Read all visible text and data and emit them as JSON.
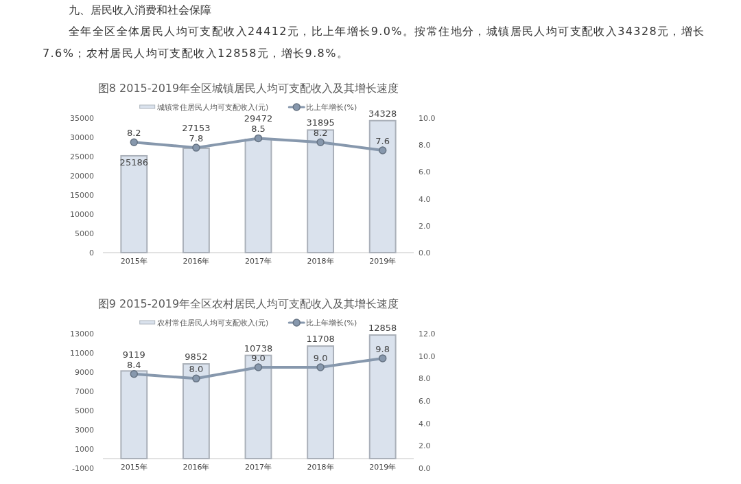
{
  "chart_data": [
    {
      "type": "other",
      "title": "九、居民收入消费和社会保障",
      "annotations": [
        "全年全区全体居民人均可支配收入24412元，比上年增长9.0%。按常住地分，城镇居民人均可支配收入34328元，增长7.6%；农村居民人均可支配收入12858元，增长9.8%。"
      ]
    },
    {
      "type": "bar",
      "title": "图8 2015-2019年全区城镇居民人均可支配收入及其增长速度",
      "categories": [
        "2015年",
        "2016年",
        "2017年",
        "2018年",
        "2019年"
      ],
      "series": [
        {
          "name": "城镇常住居民人均可支配收入(元)",
          "type": "bar",
          "color": "#dae2ed",
          "values": [
            25186,
            27153,
            29472,
            31895,
            34328
          ],
          "value_labels": [
            "25186",
            "27153",
            "29472",
            "31895",
            "34328"
          ]
        },
        {
          "name": "比上年增长(%)",
          "type": "line",
          "axis": "y2",
          "color": "#8798ad",
          "values": [
            8.2,
            7.8,
            8.5,
            8.2,
            7.6
          ],
          "value_labels": [
            "8.2",
            "7.8",
            "8.5",
            "8.2",
            "7.6"
          ]
        }
      ],
      "ylim": [
        0,
        35000
      ],
      "yticks": [
        0,
        5000,
        10000,
        15000,
        20000,
        25000,
        30000,
        35000
      ],
      "y2lim": [
        0,
        10
      ],
      "y2ticks": [
        {
          "value": 0,
          "label": "0.0"
        },
        {
          "value": 2,
          "label": "2.0"
        },
        {
          "value": 4,
          "label": "4.0"
        },
        {
          "value": 6,
          "label": "6.0"
        },
        {
          "value": 8,
          "label": "8.0"
        },
        {
          "value": 10,
          "label": "10.0"
        }
      ],
      "legend": "top",
      "marker": "circle"
    },
    {
      "type": "bar",
      "title": "图9 2015-2019年全区农村居民人均可支配收入及其增长速度",
      "categories": [
        "2015年",
        "2016年",
        "2017年",
        "2018年",
        "2019年"
      ],
      "series": [
        {
          "name": "农村常住居民人均可支配收入(元)",
          "type": "bar",
          "color": "#dae2ed",
          "values": [
            9119,
            9852,
            10738,
            11708,
            12858
          ],
          "value_labels": [
            "9119",
            "9852",
            "10738",
            "11708",
            "12858"
          ]
        },
        {
          "name": "比上年增长(%)",
          "type": "line",
          "axis": "y2",
          "color": "#8798ad",
          "values": [
            8.4,
            8.0,
            9.0,
            9.0,
            9.8
          ],
          "value_labels": [
            "8.4",
            "8.0",
            "9.0",
            "9.0",
            "9.8"
          ]
        }
      ],
      "ylim": [
        -1000,
        13000
      ],
      "yticks": [
        -1000,
        1000,
        3000,
        5000,
        7000,
        9000,
        11000,
        13000
      ],
      "y2lim": [
        0,
        12
      ],
      "y2ticks": [
        {
          "value": 0,
          "label": "0.0"
        },
        {
          "value": 2,
          "label": "2.0"
        },
        {
          "value": 4,
          "label": "4.0"
        },
        {
          "value": 6,
          "label": "6.0"
        },
        {
          "value": 8,
          "label": "8.0"
        },
        {
          "value": 10,
          "label": "10.0"
        },
        {
          "value": 12,
          "label": "12.0"
        }
      ],
      "legend": "top",
      "marker": "circle"
    }
  ]
}
